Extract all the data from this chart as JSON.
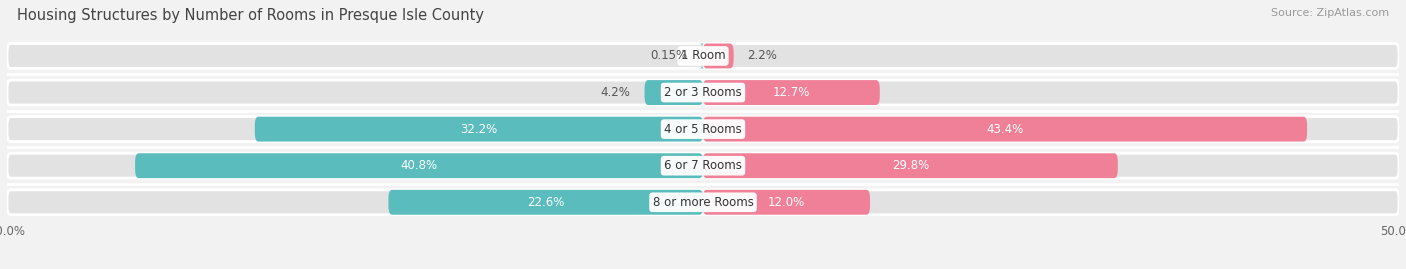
{
  "title": "Housing Structures by Number of Rooms in Presque Isle County",
  "source": "Source: ZipAtlas.com",
  "categories": [
    "1 Room",
    "2 or 3 Rooms",
    "4 or 5 Rooms",
    "6 or 7 Rooms",
    "8 or more Rooms"
  ],
  "owner_values": [
    0.15,
    4.2,
    32.2,
    40.8,
    22.6
  ],
  "renter_values": [
    2.2,
    12.7,
    43.4,
    29.8,
    12.0
  ],
  "owner_color": "#5bbcbe",
  "renter_color": "#f08098",
  "background_color": "#f2f2f2",
  "bar_background": "#e2e2e2",
  "title_fontsize": 10.5,
  "label_fontsize": 8.5,
  "value_fontsize": 8.5,
  "source_fontsize": 8,
  "bar_height": 0.68,
  "bar_gap": 0.06
}
